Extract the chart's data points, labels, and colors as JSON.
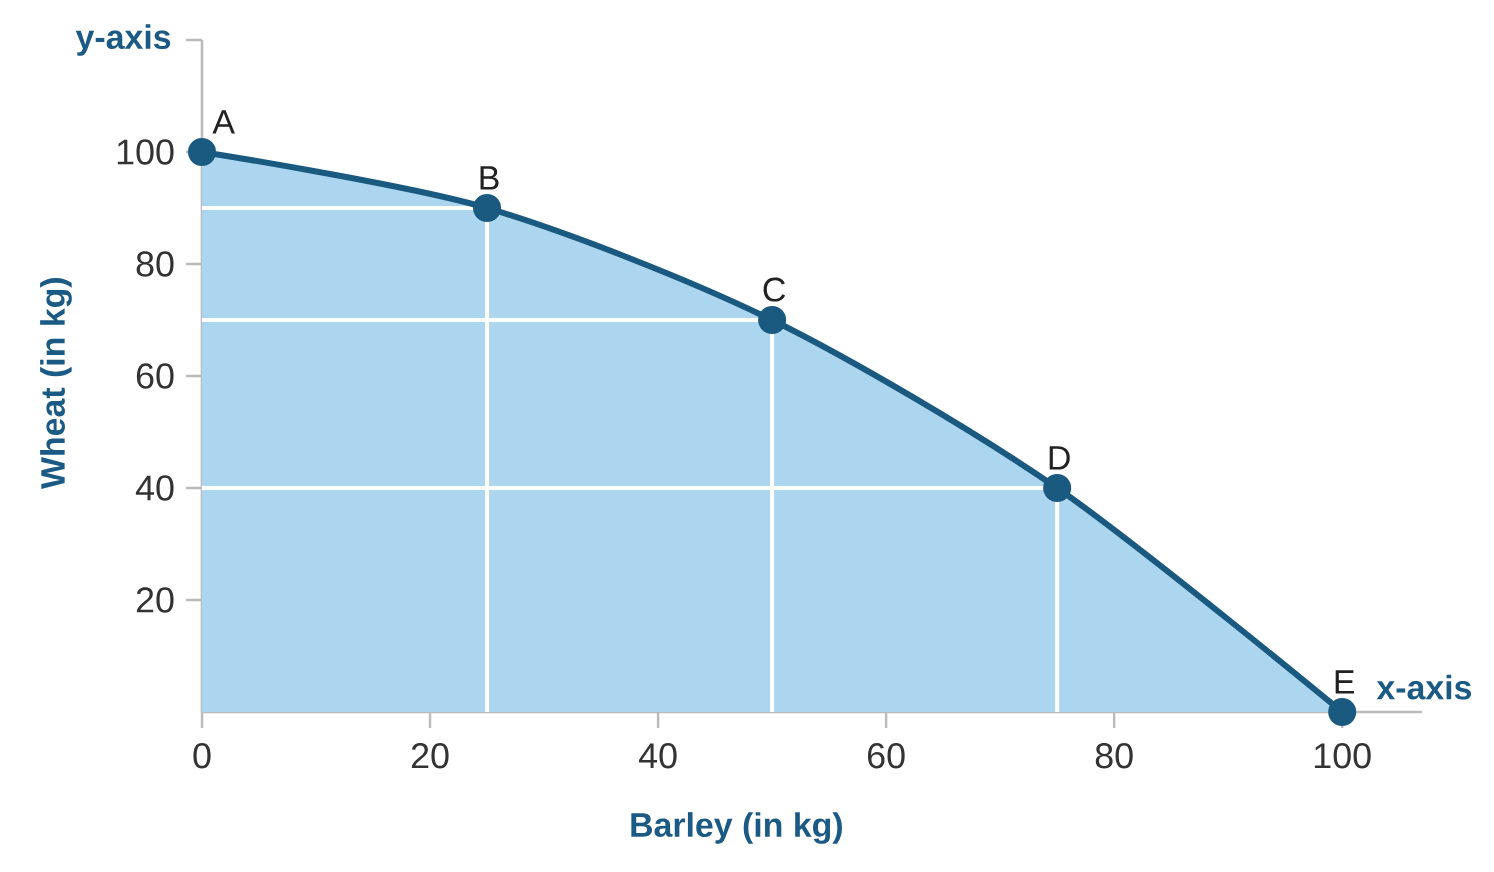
{
  "chart_data": {
    "type": "area",
    "xlabel": "Barley (in kg)",
    "ylabel": "Wheat (in kg)",
    "x": [
      0,
      25,
      50,
      75,
      100
    ],
    "series": [
      {
        "color": "#1a5a80",
        "marker": "circle",
        "values": [
          100,
          90,
          70,
          40,
          0
        ]
      }
    ],
    "xlim": [
      0,
      107
    ],
    "ylim": [
      0,
      120
    ],
    "xticks": [
      0,
      20,
      40,
      60,
      80,
      100
    ],
    "yticks": [
      20,
      40,
      60,
      80,
      100,
      {
        "value": 120,
        "label": null
      }
    ],
    "ref_lines": [
      {
        "axis": "x",
        "value": 25,
        "color": "#ffffff"
      },
      {
        "axis": "x",
        "value": 50,
        "color": "#ffffff"
      },
      {
        "axis": "x",
        "value": 75,
        "color": "#ffffff"
      },
      {
        "axis": "y",
        "value": 90,
        "color": "#ffffff"
      },
      {
        "axis": "y",
        "value": 70,
        "color": "#ffffff"
      },
      {
        "axis": "y",
        "value": 40,
        "color": "#ffffff"
      }
    ],
    "annotations": [
      "y-axis",
      "x-axis",
      {
        "text": "A",
        "x": 0,
        "y": 100
      },
      {
        "text": "B",
        "x": 25,
        "y": 90
      },
      {
        "text": "C",
        "x": 50,
        "y": 70
      },
      {
        "text": "D",
        "x": 75,
        "y": 40
      },
      {
        "text": "E",
        "x": 100,
        "y": 0
      }
    ]
  }
}
